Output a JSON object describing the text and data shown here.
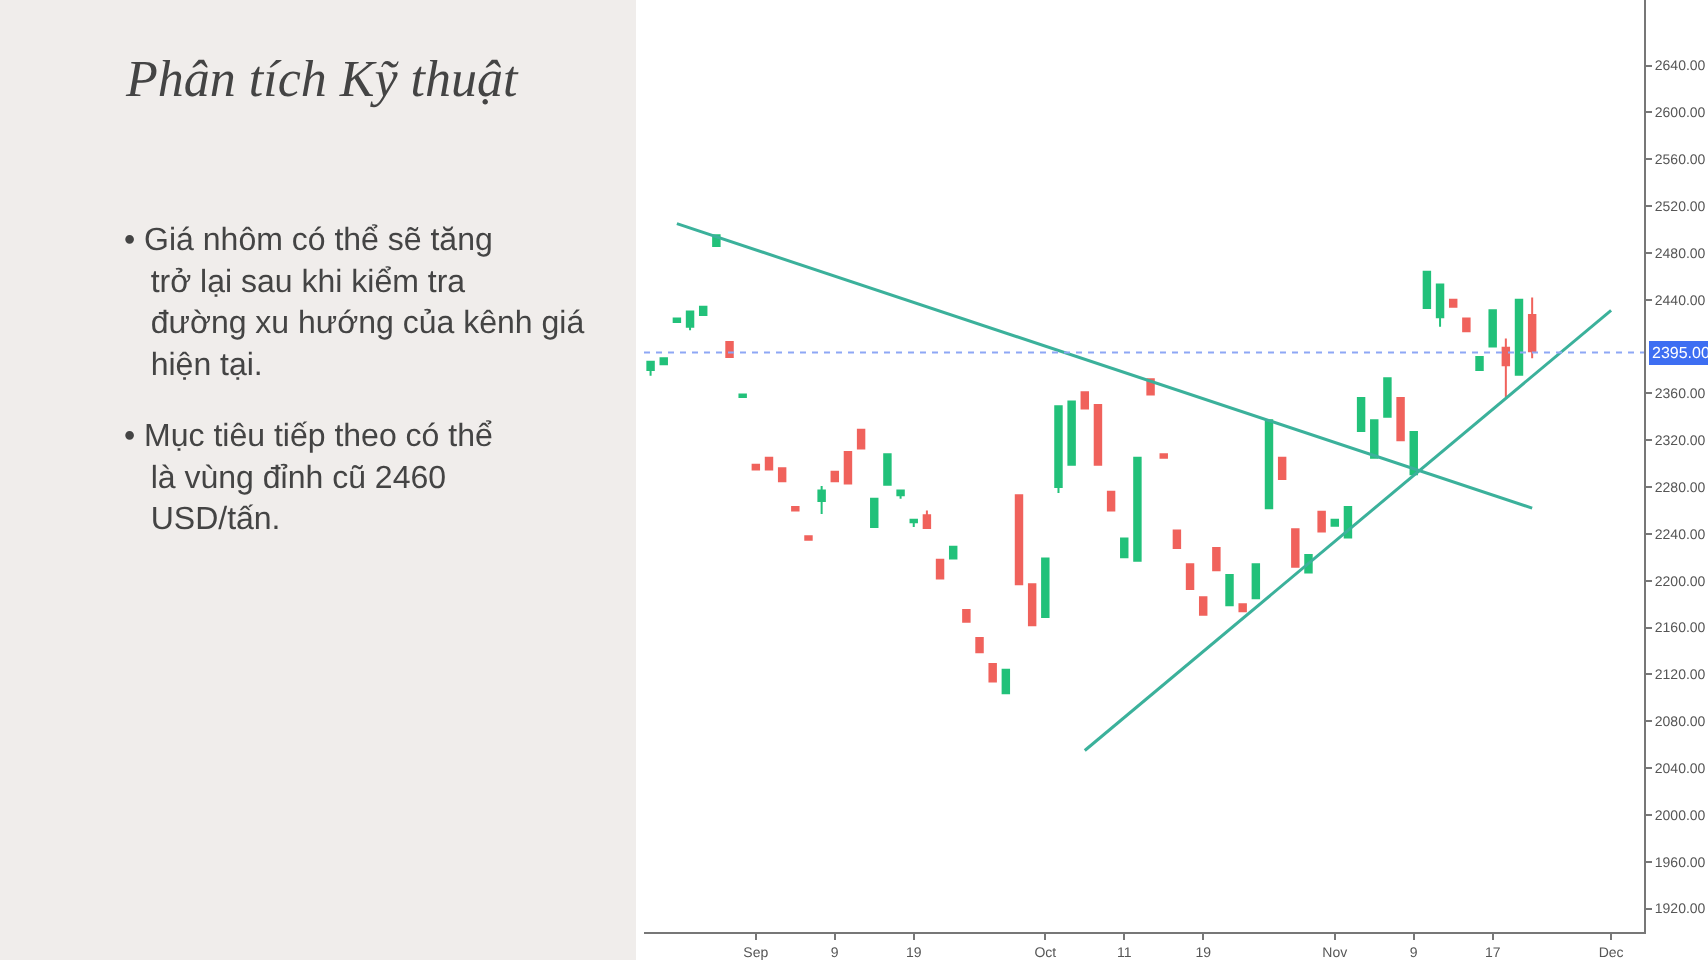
{
  "chart_data": {
    "type": "candlestick",
    "title": "Phân tích Kỹ thuật",
    "annotations": [
      "• Giá nhôm có thể sẽ tăng trở lại sau khi kiểm tra đường xu hướng của kênh giá hiện tại.",
      "• Mục tiêu tiếp theo có thể là vùng đỉnh cũ 2460 USD/tấn."
    ],
    "categories": [
      null,
      null,
      null,
      null,
      null,
      null,
      null,
      null,
      "Sep",
      null,
      null,
      null,
      null,
      null,
      "9",
      null,
      null,
      null,
      null,
      null,
      "19",
      null,
      null,
      null,
      null,
      null,
      null,
      null,
      null,
      null,
      "Oct",
      null,
      null,
      null,
      null,
      null,
      "11",
      null,
      null,
      null,
      null,
      null,
      "19",
      null,
      null,
      null,
      null,
      null,
      null,
      null,
      null,
      null,
      "Nov",
      null,
      null,
      null,
      null,
      null,
      "9",
      null,
      null,
      null,
      null,
      null,
      "17",
      null,
      null,
      null,
      null,
      null,
      null,
      null,
      null,
      "Dec",
      null,
      null
    ],
    "ylim": [
      1900,
      2696
    ],
    "yticks": [
      {
        "value": 1920,
        "label": "1920.00"
      },
      {
        "value": 1960,
        "label": "1960.00"
      },
      {
        "value": 2000,
        "label": "2000.00"
      },
      {
        "value": 2040,
        "label": "2040.00"
      },
      {
        "value": 2080,
        "label": "2080.00"
      },
      {
        "value": 2120,
        "label": "2120.00"
      },
      {
        "value": 2160,
        "label": "2160.00"
      },
      {
        "value": 2200,
        "label": "2200.00"
      },
      {
        "value": 2240,
        "label": "2240.00"
      },
      {
        "value": 2280,
        "label": "2280.00"
      },
      {
        "value": 2320,
        "label": "2320.00"
      },
      {
        "value": 2360,
        "label": "2360.00"
      },
      {
        "value": 2440,
        "label": "2440.00"
      },
      {
        "value": 2480,
        "label": "2480.00"
      },
      {
        "value": 2520,
        "label": "2520.00"
      },
      {
        "value": 2560,
        "label": "2560.00"
      },
      {
        "value": 2600,
        "label": "2600.00"
      },
      {
        "value": 2640,
        "label": "2640.00"
      }
    ],
    "ohlc": [
      [
        2380,
        2387,
        2375,
        2387
      ],
      [
        2385,
        2390,
        2385,
        2390
      ],
      [
        2421,
        2424,
        2421,
        2424
      ],
      [
        2417,
        2430,
        2414,
        2430
      ],
      [
        2427,
        2434,
        2427,
        2434
      ],
      [
        2486,
        2495,
        2486,
        2495
      ],
      [
        2404,
        2404,
        2391,
        2391
      ],
      [
        2357,
        2359,
        2357,
        2359
      ],
      [
        2299,
        2299,
        2295,
        2295
      ],
      [
        2305,
        2305,
        2295,
        2295
      ],
      [
        2296,
        2296,
        2285,
        2285
      ],
      [
        2263,
        2263,
        2260,
        2260
      ],
      [
        2238,
        2238,
        2235,
        2235
      ],
      [
        2268,
        2281,
        2257,
        2277
      ],
      [
        2293,
        2293,
        2285,
        2285
      ],
      [
        2310,
        2310,
        2283,
        2283
      ],
      [
        2329,
        2329,
        2313,
        2313
      ],
      [
        2246,
        2270,
        2246,
        2270
      ],
      [
        2282,
        2308,
        2282,
        2308
      ],
      [
        2273,
        2277,
        2270,
        2277
      ],
      [
        2250,
        2252,
        2246,
        2252
      ],
      [
        2256,
        2260,
        2245,
        2245
      ],
      [
        2218,
        2218,
        2202,
        2202
      ],
      [
        2219,
        2229,
        2219,
        2229
      ],
      [
        2175,
        2175,
        2165,
        2165
      ],
      [
        2151,
        2151,
        2139,
        2139
      ],
      [
        2129,
        2129,
        2114,
        2114
      ],
      [
        2104,
        2124,
        2104,
        2124
      ],
      [
        2273,
        2273,
        2197,
        2197
      ],
      [
        2197,
        2197,
        2162,
        2162
      ],
      [
        2169,
        2219,
        2169,
        2219
      ],
      [
        2280,
        2349,
        2275,
        2349
      ],
      [
        2299,
        2353,
        2299,
        2353
      ],
      [
        2361,
        2361,
        2347,
        2347
      ],
      [
        2350,
        2350,
        2299,
        2299
      ],
      [
        2276,
        2276,
        2260,
        2260
      ],
      [
        2220,
        2236,
        2220,
        2236
      ],
      [
        2217,
        2305,
        2217,
        2305
      ],
      [
        2372,
        2372,
        2359,
        2359
      ],
      [
        2308,
        2308,
        2305,
        2305
      ],
      [
        2243,
        2243,
        2228,
        2228
      ],
      [
        2214,
        2214,
        2193,
        2193
      ],
      [
        2186,
        2186,
        2171,
        2171
      ],
      [
        2228,
        2228,
        2209,
        2209
      ],
      [
        2179,
        2205,
        2179,
        2205
      ],
      [
        2180,
        2180,
        2174,
        2174
      ],
      [
        2185,
        2214,
        2185,
        2214
      ],
      [
        2262,
        2337,
        2262,
        2337
      ],
      [
        2305,
        2305,
        2287,
        2287
      ],
      [
        2244,
        2244,
        2212,
        2212
      ],
      [
        2207,
        2222,
        2207,
        2222
      ],
      [
        2259,
        2259,
        2242,
        2242
      ],
      [
        2247,
        2252,
        2247,
        2252
      ],
      [
        2237,
        2263,
        2237,
        2263
      ],
      [
        2328,
        2356,
        2328,
        2356
      ],
      [
        2305,
        2337,
        2305,
        2337
      ],
      [
        2340,
        2373,
        2340,
        2373
      ],
      [
        2356,
        2356,
        2320,
        2320
      ],
      [
        2291,
        2327,
        2291,
        2327
      ],
      [
        2433,
        2464,
        2433,
        2464
      ],
      [
        2425,
        2453,
        2417,
        2453
      ],
      [
        2440,
        2440,
        2434,
        2434
      ],
      [
        2424,
        2424,
        2413,
        2413
      ],
      [
        2380,
        2391,
        2380,
        2391
      ],
      [
        2400,
        2431,
        2400,
        2431
      ],
      [
        2399,
        2407,
        2357,
        2384
      ],
      [
        2376,
        2440,
        2376,
        2440
      ],
      [
        2427,
        2442,
        2390,
        2396
      ],
      null,
      null,
      null,
      null,
      null,
      null,
      null,
      null
    ],
    "colors": [
      "#22c17a",
      "#22c17a",
      "#22c17a",
      "#22c17a",
      "#22c17a",
      "#22c17a",
      "#f0625c",
      "#22c17a",
      "#f0625c",
      "#f0625c",
      "#f0625c",
      "#f0625c",
      "#f0625c",
      "#22c17a",
      "#f0625c",
      "#f0625c",
      "#f0625c",
      "#22c17a",
      "#22c17a",
      "#22c17a",
      "#22c17a",
      "#f0625c",
      "#f0625c",
      "#22c17a",
      "#f0625c",
      "#f0625c",
      "#f0625c",
      "#22c17a",
      "#f0625c",
      "#f0625c",
      "#22c17a",
      "#22c17a",
      "#22c17a",
      "#f0625c",
      "#f0625c",
      "#f0625c",
      "#22c17a",
      "#22c17a",
      "#f0625c",
      "#f0625c",
      "#f0625c",
      "#f0625c",
      "#f0625c",
      "#f0625c",
      "#22c17a",
      "#f0625c",
      "#22c17a",
      "#22c17a",
      "#f0625c",
      "#f0625c",
      "#22c17a",
      "#f0625c",
      "#22c17a",
      "#22c17a",
      "#22c17a",
      "#22c17a",
      "#22c17a",
      "#f0625c",
      "#22c17a",
      "#22c17a",
      "#22c17a",
      "#f0625c",
      "#f0625c",
      "#22c17a",
      "#22c17a",
      "#f0625c",
      "#22c17a",
      "#f0625c",
      null,
      null,
      null,
      null,
      null,
      null,
      null,
      null
    ],
    "series": [
      {
        "type": "line",
        "values": [
          null,
          null,
          2505,
          null,
          null,
          null,
          null,
          null,
          null,
          null,
          null,
          null,
          null,
          null,
          null,
          null,
          null,
          null,
          null,
          null,
          null,
          null,
          null,
          null,
          null,
          null,
          null,
          null,
          null,
          null,
          null,
          null,
          null,
          null,
          null,
          null,
          null,
          null,
          null,
          null,
          null,
          null,
          null,
          null,
          null,
          null,
          null,
          null,
          null,
          null,
          null,
          null,
          null,
          null,
          null,
          null,
          null,
          null,
          null,
          null,
          null,
          null,
          null,
          null,
          null,
          null,
          null,
          2262,
          null,
          null,
          null,
          null,
          null,
          null,
          null,
          null
        ],
        "color": "#3bb19b"
      },
      {
        "type": "line",
        "values": [
          null,
          null,
          null,
          null,
          null,
          null,
          null,
          null,
          null,
          null,
          null,
          null,
          null,
          null,
          null,
          null,
          null,
          null,
          null,
          null,
          null,
          null,
          null,
          null,
          null,
          null,
          null,
          null,
          null,
          null,
          null,
          null,
          null,
          2055,
          null,
          null,
          null,
          null,
          null,
          null,
          null,
          null,
          null,
          null,
          null,
          null,
          null,
          null,
          null,
          null,
          null,
          null,
          null,
          null,
          null,
          null,
          null,
          null,
          null,
          null,
          null,
          null,
          null,
          null,
          null,
          null,
          null,
          null,
          null,
          null,
          null,
          null,
          null,
          2431,
          null,
          null
        ],
        "color": "#3bb19b"
      }
    ],
    "ref_lines": [
      {
        "axis": "y",
        "value": 2395,
        "label": "2395.00",
        "color": "#8ea7f5",
        "line_style": "dotted"
      }
    ]
  }
}
